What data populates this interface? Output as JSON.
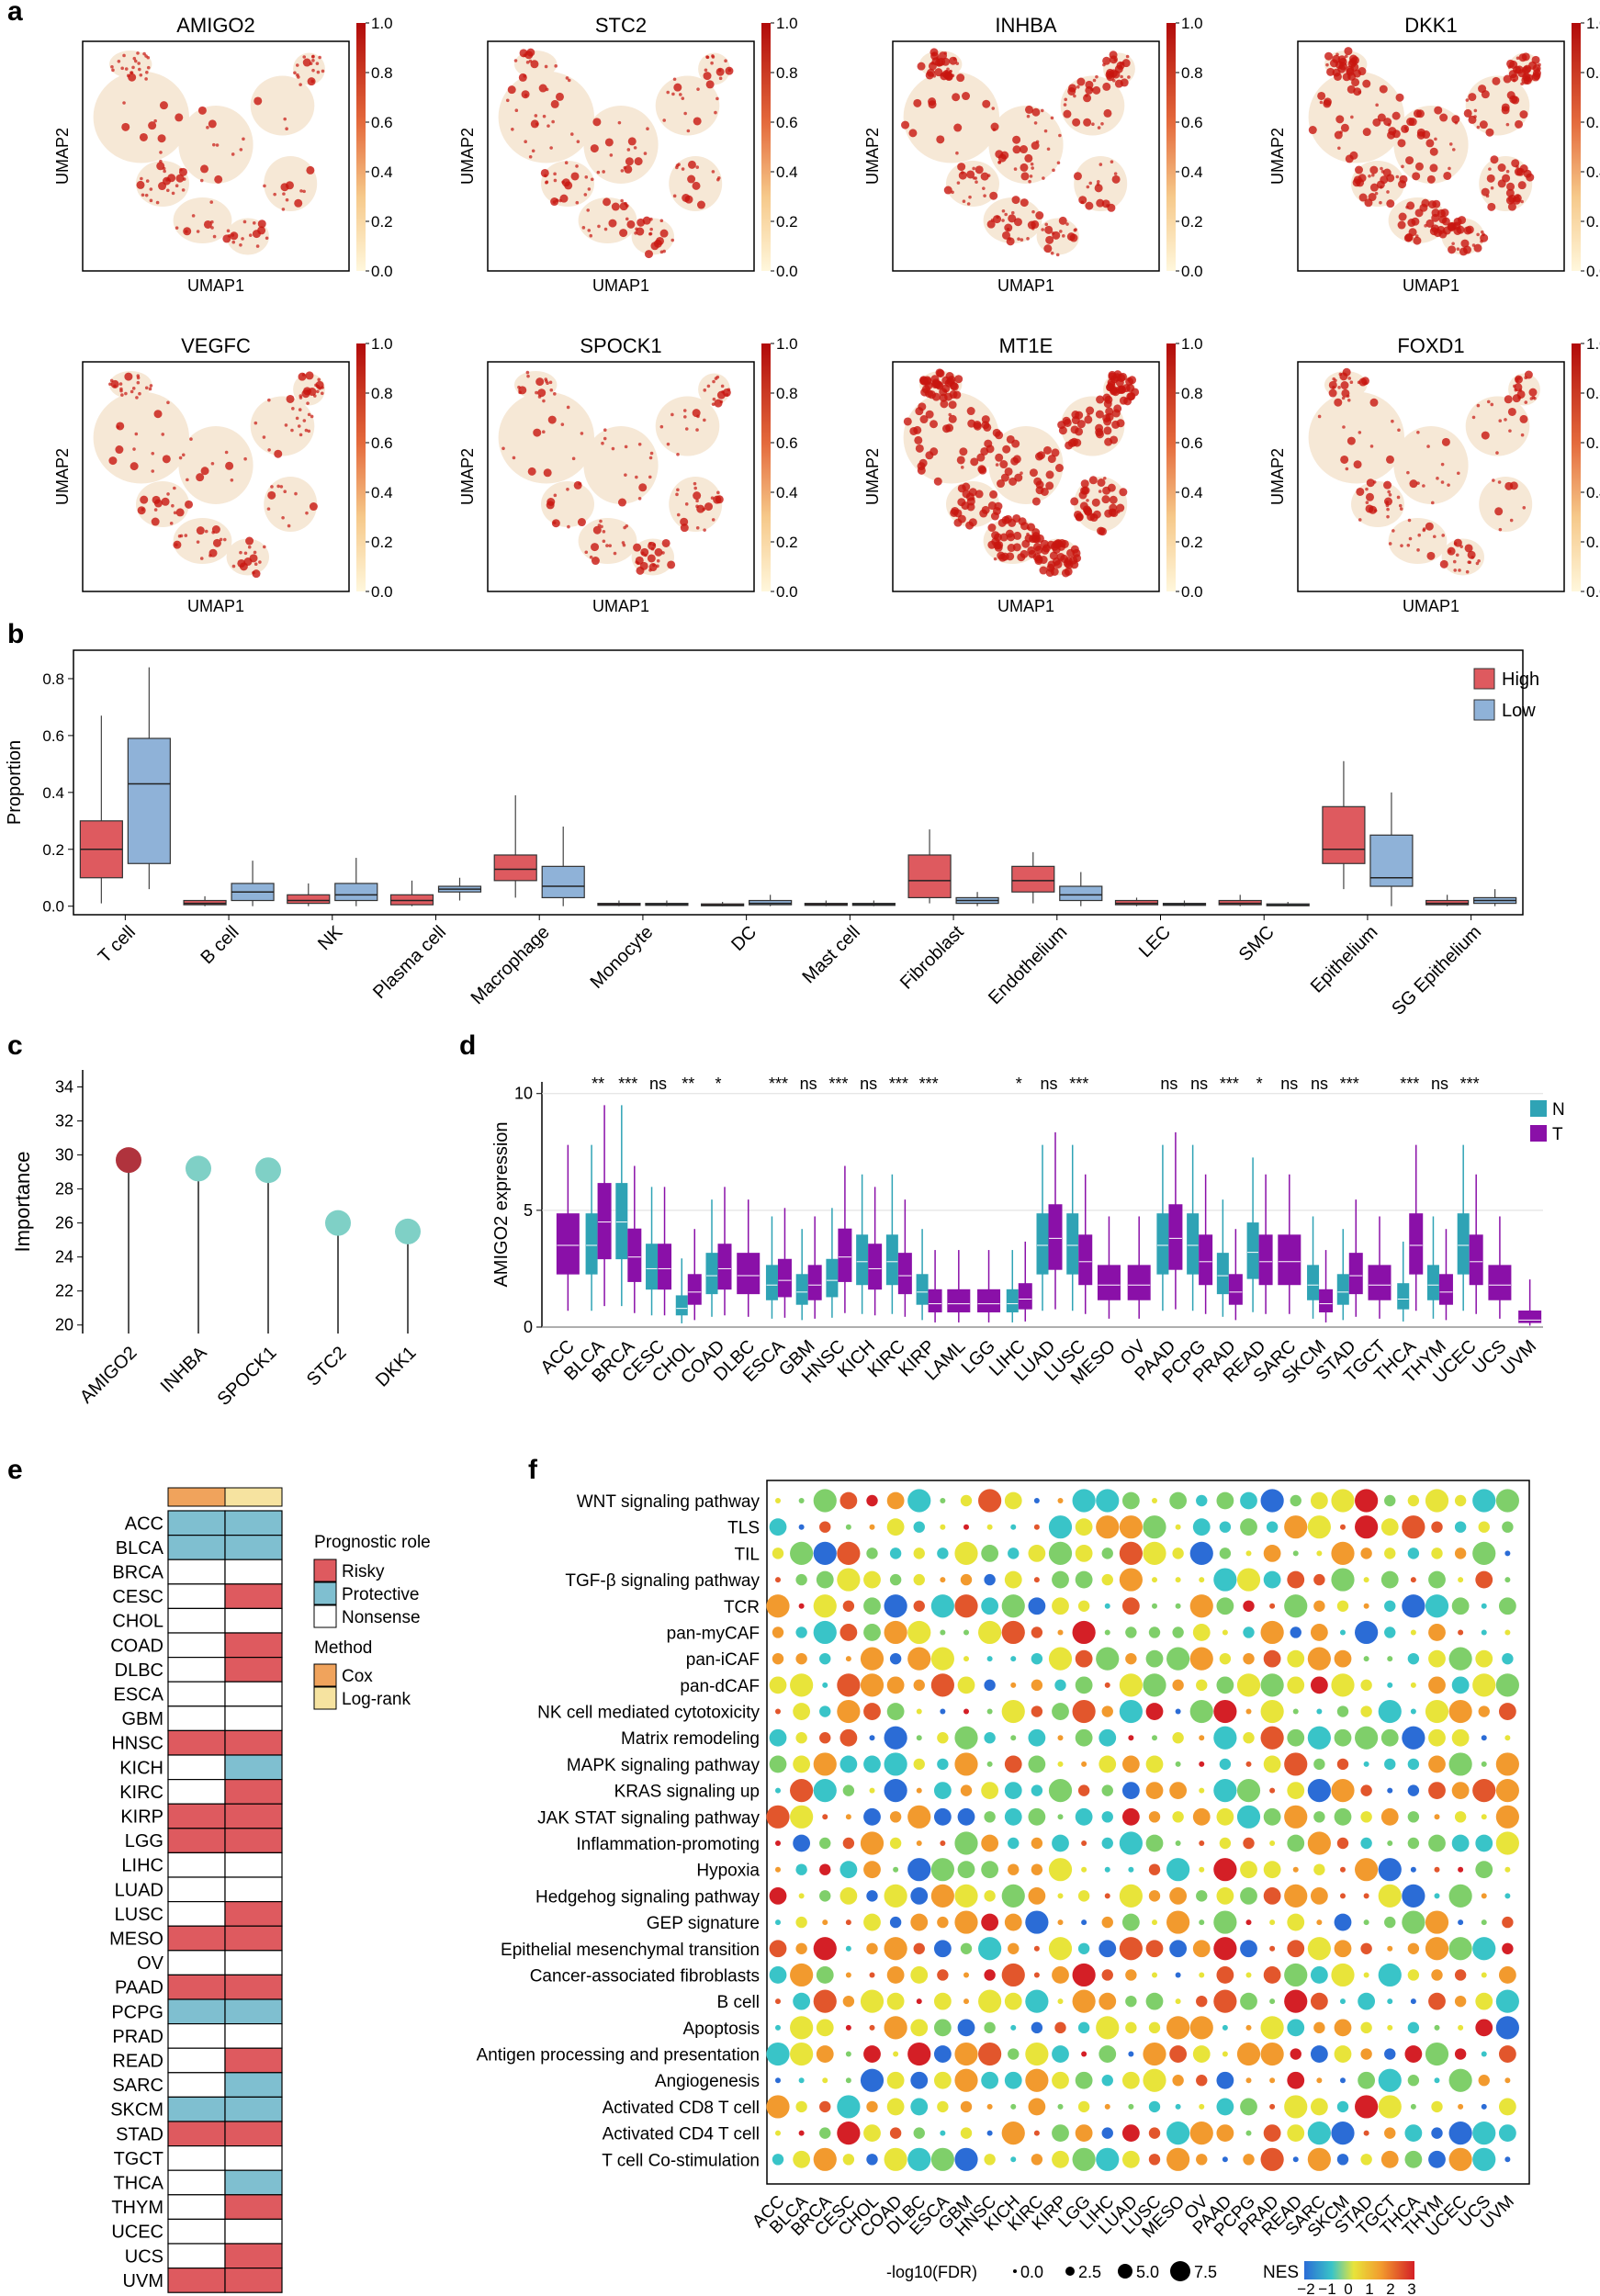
{
  "colors": {
    "risky": "#de5a5f",
    "protective": "#7fbfd0",
    "nonsense": "#ffffff",
    "cox": "#f0a35c",
    "logrank": "#f6e3a0",
    "high": "#de5a5f",
    "low": "#8fb2d8",
    "normal": "#2fa3b5",
    "tumor": "#8a10a8",
    "umap_base": "#f6e8d6",
    "umap_hot": "#c8150f",
    "importance_top": "#b0333d",
    "importance_other": "#7fd0c6"
  },
  "panel_a": {
    "label": "a",
    "xlabel": "UMAP1",
    "ylabel": "UMAP2",
    "colorbar_ticks": [
      "1.0",
      "0.8",
      "0.6",
      "0.4",
      "0.2",
      "0.0"
    ],
    "genes": [
      {
        "name": "AMIGO2",
        "intensity": 0.25
      },
      {
        "name": "STC2",
        "intensity": 0.35
      },
      {
        "name": "INHBA",
        "intensity": 0.55
      },
      {
        "name": "DKK1",
        "intensity": 0.7
      },
      {
        "name": "VEGFC",
        "intensity": 0.3
      },
      {
        "name": "SPOCK1",
        "intensity": 0.3
      },
      {
        "name": "MT1E",
        "intensity": 0.95
      },
      {
        "name": "FOXD1",
        "intensity": 0.3
      }
    ]
  },
  "panel_b": {
    "label": "b",
    "ylabel": "Proportion",
    "yticks": [
      "0.0",
      "0.2",
      "0.4",
      "0.6",
      "0.8"
    ],
    "legend": [
      "High",
      "Low"
    ],
    "chart_data": {
      "type": "box",
      "ylim": [
        -0.03,
        0.9
      ],
      "categories": [
        "T cell",
        "B cell",
        "NK",
        "Plasma cell",
        "Macrophage",
        "Monocyte",
        "DC",
        "Mast cell",
        "Fibroblast",
        "Endothelium",
        "LEC",
        "SMC",
        "Epithelium",
        "SG Epithelium"
      ],
      "series": [
        {
          "name": "High",
          "boxes": [
            [
              0.01,
              0.1,
              0.2,
              0.3,
              0.67
            ],
            [
              0,
              0.005,
              0.01,
              0.02,
              0.035
            ],
            [
              0,
              0.01,
              0.02,
              0.04,
              0.08
            ],
            [
              0,
              0.005,
              0.02,
              0.04,
              0.09
            ],
            [
              0.03,
              0.09,
              0.13,
              0.18,
              0.39
            ],
            [
              0,
              0.003,
              0.006,
              0.01,
              0.02
            ],
            [
              0,
              0.002,
              0.004,
              0.008,
              0.015
            ],
            [
              0,
              0.003,
              0.006,
              0.01,
              0.02
            ],
            [
              0.01,
              0.03,
              0.09,
              0.18,
              0.27
            ],
            [
              0.01,
              0.05,
              0.09,
              0.14,
              0.19
            ],
            [
              0,
              0.005,
              0.01,
              0.02,
              0.03
            ],
            [
              0,
              0.005,
              0.01,
              0.02,
              0.04
            ],
            [
              0.06,
              0.15,
              0.2,
              0.35,
              0.51
            ],
            [
              0,
              0.005,
              0.01,
              0.02,
              0.04
            ]
          ]
        },
        {
          "name": "Low",
          "boxes": [
            [
              0.06,
              0.15,
              0.43,
              0.59,
              0.84
            ],
            [
              0,
              0.02,
              0.05,
              0.08,
              0.16
            ],
            [
              0,
              0.02,
              0.04,
              0.08,
              0.17
            ],
            [
              0.02,
              0.05,
              0.06,
              0.07,
              0.1
            ],
            [
              0,
              0.03,
              0.07,
              0.14,
              0.28
            ],
            [
              0,
              0.003,
              0.006,
              0.01,
              0.02
            ],
            [
              0,
              0.005,
              0.01,
              0.02,
              0.04
            ],
            [
              0,
              0.003,
              0.006,
              0.01,
              0.02
            ],
            [
              0,
              0.01,
              0.02,
              0.03,
              0.05
            ],
            [
              0,
              0.02,
              0.04,
              0.07,
              0.12
            ],
            [
              0,
              0.003,
              0.006,
              0.01,
              0.02
            ],
            [
              0,
              0.002,
              0.004,
              0.008,
              0.015
            ],
            [
              0,
              0.07,
              0.1,
              0.25,
              0.4
            ],
            [
              0,
              0.01,
              0.02,
              0.03,
              0.06
            ]
          ]
        }
      ]
    }
  },
  "panel_c": {
    "label": "c",
    "ylabel": "Importance",
    "yticks": [
      "20",
      "22",
      "24",
      "26",
      "28",
      "30",
      "32",
      "34"
    ],
    "chart_data": {
      "type": "lollipop",
      "categories": [
        "AMIGO2",
        "INHBA",
        "SPOCK1",
        "STC2",
        "DKK1"
      ],
      "values": [
        29.7,
        29.2,
        29.1,
        26.0,
        25.5
      ],
      "ylim": [
        19.5,
        35
      ]
    }
  },
  "panel_d": {
    "label": "d",
    "ylabel": "AMIGO2 expression",
    "yticks": [
      "0",
      "5",
      "10"
    ],
    "legend": [
      "N",
      "T"
    ],
    "chart_data": {
      "type": "box",
      "ylim": [
        0,
        10.5
      ],
      "categories": [
        "ACC",
        "BLCA",
        "BRCA",
        "CESC",
        "CHOL",
        "COAD",
        "DLBC",
        "ESCA",
        "GBM",
        "HNSC",
        "KICH",
        "KIRC",
        "KIRP",
        "LAML",
        "LGG",
        "LIHC",
        "LUAD",
        "LUSC",
        "MESO",
        "OV",
        "PAAD",
        "PCPG",
        "PRAD",
        "READ",
        "SARC",
        "SKCM",
        "STAD",
        "TGCT",
        "THCA",
        "THYM",
        "UCEC",
        "UCS",
        "UVM"
      ],
      "significance": [
        "",
        "**",
        "***",
        "ns",
        "**",
        "*",
        "",
        "***",
        "ns",
        "***",
        "ns",
        "***",
        "***",
        "",
        "",
        "*",
        "ns",
        "***",
        "",
        "",
        "ns",
        "ns",
        "***",
        "*",
        "ns",
        "ns",
        "***",
        "",
        "***",
        "ns",
        "***",
        "",
        ""
      ],
      "normal_median": [
        null,
        3.5,
        4.5,
        2.5,
        0.8,
        2.2,
        null,
        1.8,
        1.5,
        2.0,
        2.8,
        2.8,
        1.5,
        null,
        null,
        1.0,
        3.5,
        3.5,
        null,
        null,
        3.5,
        3.5,
        2.2,
        3.2,
        null,
        1.8,
        1.5,
        null,
        1.2,
        1.8,
        3.5,
        null,
        null
      ],
      "tumor_median": [
        3.5,
        4.5,
        3.0,
        2.5,
        1.5,
        2.5,
        2.2,
        2.0,
        1.8,
        3.0,
        2.5,
        2.2,
        1.0,
        1.0,
        1.0,
        1.2,
        3.8,
        2.8,
        1.8,
        1.8,
        3.8,
        2.8,
        1.5,
        2.8,
        2.8,
        1.0,
        2.2,
        1.8,
        3.5,
        1.5,
        2.8,
        1.8,
        0.3
      ]
    }
  },
  "panel_e": {
    "label": "e",
    "legend_prognostic_title": "Prognostic role",
    "legend_prognostic": [
      "Risky",
      "Protective",
      "Nonsense"
    ],
    "legend_method_title": "Method",
    "legend_method": [
      "Cox",
      "Log-rank"
    ],
    "rows": [
      {
        "name": "ACC",
        "cox": "P",
        "lr": "P"
      },
      {
        "name": "BLCA",
        "cox": "P",
        "lr": "P"
      },
      {
        "name": "BRCA",
        "cox": "N",
        "lr": "N"
      },
      {
        "name": "CESC",
        "cox": "N",
        "lr": "R"
      },
      {
        "name": "CHOL",
        "cox": "N",
        "lr": "N"
      },
      {
        "name": "COAD",
        "cox": "N",
        "lr": "R"
      },
      {
        "name": "DLBC",
        "cox": "N",
        "lr": "R"
      },
      {
        "name": "ESCA",
        "cox": "N",
        "lr": "N"
      },
      {
        "name": "GBM",
        "cox": "N",
        "lr": "N"
      },
      {
        "name": "HNSC",
        "cox": "R",
        "lr": "R"
      },
      {
        "name": "KICH",
        "cox": "N",
        "lr": "P"
      },
      {
        "name": "KIRC",
        "cox": "N",
        "lr": "R"
      },
      {
        "name": "KIRP",
        "cox": "R",
        "lr": "R"
      },
      {
        "name": "LGG",
        "cox": "R",
        "lr": "R"
      },
      {
        "name": "LIHC",
        "cox": "N",
        "lr": "N"
      },
      {
        "name": "LUAD",
        "cox": "N",
        "lr": "N"
      },
      {
        "name": "LUSC",
        "cox": "N",
        "lr": "R"
      },
      {
        "name": "MESO",
        "cox": "R",
        "lr": "R"
      },
      {
        "name": "OV",
        "cox": "N",
        "lr": "N"
      },
      {
        "name": "PAAD",
        "cox": "R",
        "lr": "R"
      },
      {
        "name": "PCPG",
        "cox": "P",
        "lr": "P"
      },
      {
        "name": "PRAD",
        "cox": "N",
        "lr": "N"
      },
      {
        "name": "READ",
        "cox": "N",
        "lr": "R"
      },
      {
        "name": "SARC",
        "cox": "N",
        "lr": "P"
      },
      {
        "name": "SKCM",
        "cox": "P",
        "lr": "P"
      },
      {
        "name": "STAD",
        "cox": "R",
        "lr": "R"
      },
      {
        "name": "TGCT",
        "cox": "N",
        "lr": "N"
      },
      {
        "name": "THCA",
        "cox": "N",
        "lr": "P"
      },
      {
        "name": "THYM",
        "cox": "N",
        "lr": "R"
      },
      {
        "name": "UCEC",
        "cox": "N",
        "lr": "N"
      },
      {
        "name": "UCS",
        "cox": "N",
        "lr": "R"
      },
      {
        "name": "UVM",
        "cox": "R",
        "lr": "R"
      }
    ]
  },
  "panel_f": {
    "label": "f",
    "pathways": [
      "WNT signaling pathway",
      "TLS",
      "TIL",
      "TGF-β signaling pathway",
      "TCR",
      "pan-myCAF",
      "pan-iCAF",
      "pan-dCAF",
      "NK cell mediated cytotoxicity",
      "Matrix remodeling",
      "MAPK signaling pathway",
      "KRAS signaling up",
      "JAK STAT signaling pathway",
      "Inflammation-promoting",
      "Hypoxia",
      "Hedgehog signaling pathway",
      "GEP signature",
      "Epithelial mesenchymal transition",
      "Cancer-associated fibroblasts",
      "B cell",
      "Apoptosis",
      "Antigen processing and presentation",
      "Angiogenesis",
      "Activated CD8 T cell",
      "Activated CD4 T cell",
      "T cell Co-stimulation"
    ],
    "cancers": [
      "ACC",
      "BLCA",
      "BRCA",
      "CESC",
      "CHOL",
      "COAD",
      "DLBC",
      "ESCA",
      "GBM",
      "HNSC",
      "KICH",
      "KIRC",
      "KIRP",
      "LGG",
      "LIHC",
      "LUAD",
      "LUSC",
      "MESO",
      "OV",
      "PAAD",
      "PCPG",
      "PRAD",
      "READ",
      "SARC",
      "SKCM",
      "STAD",
      "TGCT",
      "THCA",
      "THYM",
      "UCEC",
      "UCS",
      "UVM"
    ],
    "size_legend_title": "-log10(FDR)",
    "size_legend": [
      "0.0",
      "2.5",
      "5.0",
      "7.5"
    ],
    "nes_title": "NES",
    "nes_ticks": [
      "−2",
      "−1",
      "0",
      "1",
      "2",
      "3"
    ]
  }
}
